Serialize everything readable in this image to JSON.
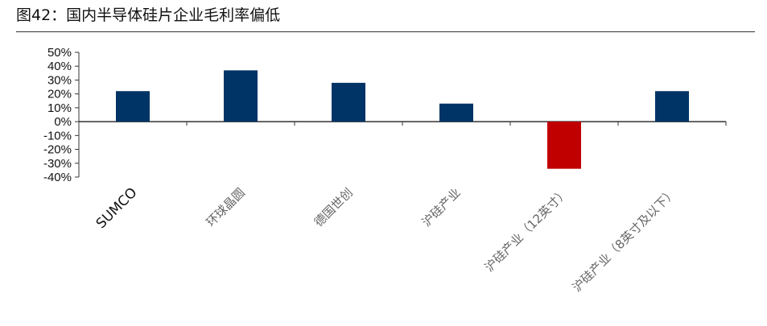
{
  "figure": {
    "title": "图42：国内半导体硅片企业毛利率偏低"
  },
  "chart_data": {
    "type": "bar",
    "categories": [
      "SUMCO",
      "环球晶圆",
      "德国世创",
      "沪硅产业",
      "沪硅产业（12英寸）",
      "沪硅产业（8英寸及以下）"
    ],
    "values": [
      22,
      37,
      28,
      13,
      -34,
      22
    ],
    "value_unit": "%",
    "y_ticks": [
      50,
      40,
      30,
      20,
      10,
      0,
      -10,
      -20,
      -30,
      -40
    ],
    "ylim": [
      -40,
      50
    ],
    "grid": false,
    "legend": "none",
    "colors": {
      "positive": "#003466",
      "negative": "#c00000",
      "axis": "#333333",
      "label": "#666666"
    }
  }
}
